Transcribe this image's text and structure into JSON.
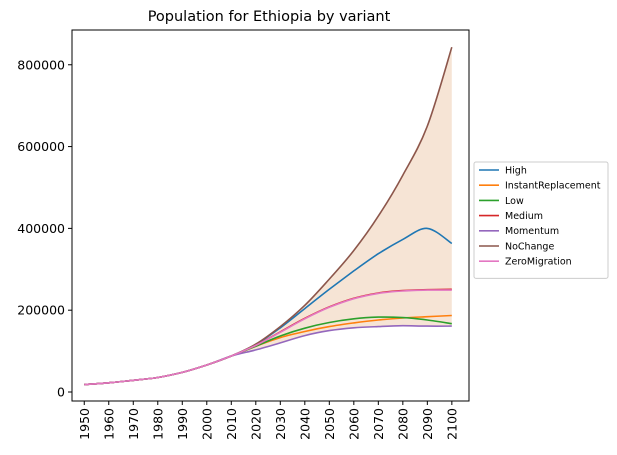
{
  "chart_data": {
    "type": "line",
    "title": "Population for Ethiopia by variant",
    "xlabel": "",
    "ylabel": "",
    "x": [
      1950,
      1960,
      1970,
      1980,
      1990,
      2000,
      2010,
      2020,
      2030,
      2040,
      2050,
      2060,
      2070,
      2080,
      2090,
      2100
    ],
    "xticks": [
      "1950",
      "1960",
      "1970",
      "1980",
      "1990",
      "2000",
      "2010",
      "2020",
      "2030",
      "2040",
      "2050",
      "2060",
      "2070",
      "2080",
      "2090",
      "2100"
    ],
    "yticks": [
      "0",
      "200000",
      "400000",
      "600000",
      "800000"
    ],
    "ytick_values": [
      0,
      200000,
      400000,
      600000,
      800000
    ],
    "xlim": [
      1945,
      2107
    ],
    "ylim": [
      -22000,
      885000
    ],
    "grid": false,
    "legend": "outside-right",
    "fill_between": {
      "lower": "Momentum",
      "upper": "NoChange",
      "color": "#f5e1d0"
    },
    "series": [
      {
        "name": "High",
        "color": "#1f77b4",
        "values": [
          18000,
          22500,
          28500,
          35500,
          48000,
          66000,
          88000,
          116000,
          157000,
          204000,
          251000,
          296000,
          338000,
          373000,
          400000,
          363000
        ]
      },
      {
        "name": "InstantReplacement",
        "color": "#ff7f0e",
        "values": [
          18000,
          22500,
          28500,
          35500,
          48000,
          66000,
          88000,
          112000,
          133000,
          148000,
          160000,
          169000,
          176000,
          181000,
          184000,
          187000
        ]
      },
      {
        "name": "Low",
        "color": "#2ca02c",
        "values": [
          18000,
          22500,
          28500,
          35500,
          48000,
          66000,
          88000,
          112000,
          137000,
          156000,
          170000,
          179000,
          183000,
          182000,
          176000,
          167000
        ]
      },
      {
        "name": "Medium",
        "color": "#d62728",
        "values": [
          18000,
          22500,
          28500,
          35500,
          48000,
          66000,
          88000,
          114000,
          147000,
          180000,
          208000,
          229000,
          242000,
          248000,
          250000,
          251000
        ]
      },
      {
        "name": "Momentum",
        "color": "#9467bd",
        "values": [
          18000,
          22500,
          28500,
          35500,
          48000,
          66000,
          88000,
          103000,
          120000,
          138000,
          150000,
          157000,
          160000,
          162000,
          161000,
          161000
        ]
      },
      {
        "name": "NoChange",
        "color": "#8c564b",
        "values": [
          18000,
          22500,
          28500,
          35500,
          48000,
          66000,
          88000,
          117000,
          160000,
          212000,
          276000,
          346000,
          430000,
          530000,
          650000,
          843000
        ]
      },
      {
        "name": "ZeroMigration",
        "color": "#e377c2",
        "values": [
          18000,
          22500,
          28500,
          35500,
          48000,
          66000,
          88000,
          114000,
          146000,
          179000,
          207000,
          228000,
          241000,
          247000,
          249000,
          249000
        ]
      }
    ]
  }
}
